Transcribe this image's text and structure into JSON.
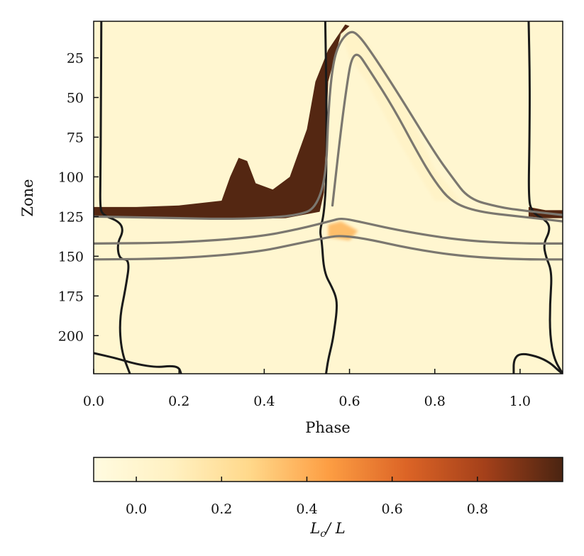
{
  "chart_data": {
    "type": "heatmap",
    "title": "",
    "xlabel": "Phase",
    "ylabel": "Zone",
    "xlim": [
      0.0,
      1.1
    ],
    "ylim": [
      224,
      2
    ],
    "x_ticks": [
      "0.0",
      "0.2",
      "0.4",
      "0.6",
      "0.8",
      "1.0"
    ],
    "y_ticks": [
      "25",
      "50",
      "75",
      "100",
      "125",
      "150",
      "175",
      "200"
    ],
    "colorbar": {
      "label": "L_c / L",
      "label_main": "L",
      "label_sub": "c",
      "label_tail": "/ L",
      "range": [
        -0.1,
        1.0
      ],
      "ticks": [
        "0.0",
        "0.2",
        "0.4",
        "0.6",
        "0.8"
      ],
      "colors": [
        "#fffbe0",
        "#fff1c2",
        "#ffd88a",
        "#fd9e43",
        "#dc6426",
        "#a4401a",
        "#4a2411"
      ]
    },
    "regions": [
      {
        "name": "convective-band",
        "value": 0.98,
        "outline": [
          [
            0.0,
            119
          ],
          [
            0.1,
            119
          ],
          [
            0.2,
            118
          ],
          [
            0.3,
            115
          ],
          [
            0.32,
            100
          ],
          [
            0.34,
            88
          ],
          [
            0.36,
            90
          ],
          [
            0.38,
            104
          ],
          [
            0.42,
            108
          ],
          [
            0.46,
            100
          ],
          [
            0.5,
            70
          ],
          [
            0.52,
            40
          ],
          [
            0.55,
            20
          ],
          [
            0.59,
            4
          ],
          [
            0.6,
            5
          ],
          [
            0.58,
            10
          ],
          [
            0.55,
            40
          ],
          [
            0.54,
            110
          ],
          [
            0.53,
            122
          ],
          [
            0.45,
            126
          ],
          [
            0.3,
            127
          ],
          [
            0.1,
            125
          ],
          [
            0.0,
            125
          ]
        ]
      },
      {
        "name": "convective-band-right",
        "value": 0.98,
        "outline": [
          [
            1.02,
            119
          ],
          [
            1.06,
            121
          ],
          [
            1.1,
            121
          ],
          [
            1.1,
            126
          ],
          [
            1.06,
            126
          ],
          [
            1.02,
            125
          ]
        ]
      },
      {
        "name": "warm-halo",
        "value": 0.35,
        "outline": [
          [
            0.55,
            130
          ],
          [
            0.58,
            128
          ],
          [
            0.62,
            134
          ],
          [
            0.6,
            140
          ],
          [
            0.55,
            138
          ]
        ]
      },
      {
        "name": "faint-wave",
        "value": 0.05,
        "outline": [
          [
            0.58,
            10
          ],
          [
            0.62,
            8
          ],
          [
            0.68,
            30
          ],
          [
            0.74,
            60
          ],
          [
            0.8,
            95
          ],
          [
            0.86,
            115
          ],
          [
            0.8,
            115
          ],
          [
            0.72,
            80
          ],
          [
            0.64,
            40
          ],
          [
            0.6,
            25
          ]
        ]
      }
    ],
    "series": [
      {
        "color": "#1a1a1a",
        "width": 3,
        "points": [
          [
            0.018,
            0
          ],
          [
            0.017,
            60
          ],
          [
            0.016,
            100
          ],
          [
            0.015,
            118
          ],
          [
            0.02,
            124
          ],
          [
            0.06,
            128
          ],
          [
            0.07,
            134
          ],
          [
            0.055,
            142
          ],
          [
            0.06,
            152
          ],
          [
            0.085,
            152
          ],
          [
            0.075,
            170
          ],
          [
            0.06,
            190
          ],
          [
            0.065,
            210
          ],
          [
            0.085,
            224
          ]
        ]
      },
      {
        "color": "#1a1a1a",
        "width": 3,
        "points": [
          [
            0.0,
            211
          ],
          [
            0.05,
            214
          ],
          [
            0.1,
            218
          ],
          [
            0.15,
            220
          ],
          [
            0.18,
            219
          ],
          [
            0.2,
            220
          ],
          [
            0.205,
            224
          ]
        ]
      },
      {
        "color": "#1a1a1a",
        "width": 3,
        "points": [
          [
            0.543,
            0
          ],
          [
            0.546,
            50
          ],
          [
            0.546,
            100
          ],
          [
            0.54,
            124
          ],
          [
            0.53,
            134
          ],
          [
            0.535,
            140
          ],
          [
            0.54,
            160
          ],
          [
            0.56,
            170
          ],
          [
            0.57,
            177
          ],
          [
            0.57,
            185
          ],
          [
            0.565,
            195
          ],
          [
            0.56,
            204
          ],
          [
            0.55,
            215
          ],
          [
            0.545,
            224
          ]
        ]
      },
      {
        "color": "#1a1a1a",
        "width": 3,
        "points": [
          [
            1.02,
            0
          ],
          [
            1.023,
            40
          ],
          [
            1.022,
            80
          ],
          [
            1.02,
            110
          ],
          [
            1.025,
            122
          ],
          [
            1.065,
            128
          ],
          [
            1.07,
            134
          ],
          [
            1.055,
            142
          ],
          [
            1.06,
            150
          ],
          [
            1.075,
            160
          ],
          [
            1.07,
            180
          ],
          [
            1.07,
            200
          ],
          [
            1.08,
            215
          ],
          [
            1.1,
            224
          ]
        ]
      },
      {
        "color": "#1a1a1a",
        "width": 3,
        "points": [
          [
            0.985,
            224
          ],
          [
            0.985,
            215
          ],
          [
            1.0,
            211
          ],
          [
            1.04,
            213
          ],
          [
            1.07,
            217
          ],
          [
            1.09,
            222
          ],
          [
            1.1,
            224
          ]
        ]
      },
      {
        "color": "#7b776f",
        "width": 3.2,
        "points": [
          [
            0.0,
            125
          ],
          [
            0.1,
            125.5
          ],
          [
            0.2,
            126
          ],
          [
            0.3,
            126.5
          ],
          [
            0.4,
            126
          ],
          [
            0.48,
            124
          ],
          [
            0.52,
            120
          ],
          [
            0.545,
            100
          ],
          [
            0.55,
            60
          ],
          [
            0.56,
            30
          ],
          [
            0.575,
            16
          ],
          [
            0.6,
            8
          ],
          [
            0.62,
            10
          ],
          [
            0.66,
            25
          ],
          [
            0.72,
            50
          ],
          [
            0.8,
            85
          ],
          [
            0.84,
            100
          ],
          [
            0.88,
            114
          ],
          [
            0.95,
            119
          ],
          [
            1.0,
            121
          ],
          [
            1.1,
            124
          ]
        ]
      },
      {
        "color": "#7b776f",
        "width": 3.2,
        "points": [
          [
            0.56,
            118
          ],
          [
            0.58,
            70
          ],
          [
            0.595,
            40
          ],
          [
            0.605,
            25
          ],
          [
            0.62,
            22
          ],
          [
            0.64,
            30
          ],
          [
            0.7,
            55
          ],
          [
            0.76,
            85
          ],
          [
            0.8,
            103
          ],
          [
            0.84,
            116
          ],
          [
            0.9,
            122
          ],
          [
            1.0,
            125
          ],
          [
            1.1,
            128
          ]
        ]
      },
      {
        "color": "#7b776f",
        "width": 3.2,
        "points": [
          [
            0.0,
            142
          ],
          [
            0.2,
            141.5
          ],
          [
            0.38,
            138
          ],
          [
            0.48,
            133
          ],
          [
            0.56,
            127.5
          ],
          [
            0.58,
            126
          ],
          [
            0.62,
            128
          ],
          [
            0.72,
            134
          ],
          [
            0.86,
            140
          ],
          [
            1.0,
            142
          ],
          [
            1.1,
            142
          ]
        ]
      },
      {
        "color": "#7b776f",
        "width": 3.2,
        "points": [
          [
            0.0,
            152
          ],
          [
            0.2,
            151.5
          ],
          [
            0.38,
            147.5
          ],
          [
            0.48,
            142
          ],
          [
            0.55,
            138
          ],
          [
            0.58,
            137
          ],
          [
            0.64,
            139
          ],
          [
            0.74,
            145
          ],
          [
            0.86,
            150
          ],
          [
            1.0,
            152
          ],
          [
            1.1,
            152
          ]
        ]
      }
    ]
  }
}
